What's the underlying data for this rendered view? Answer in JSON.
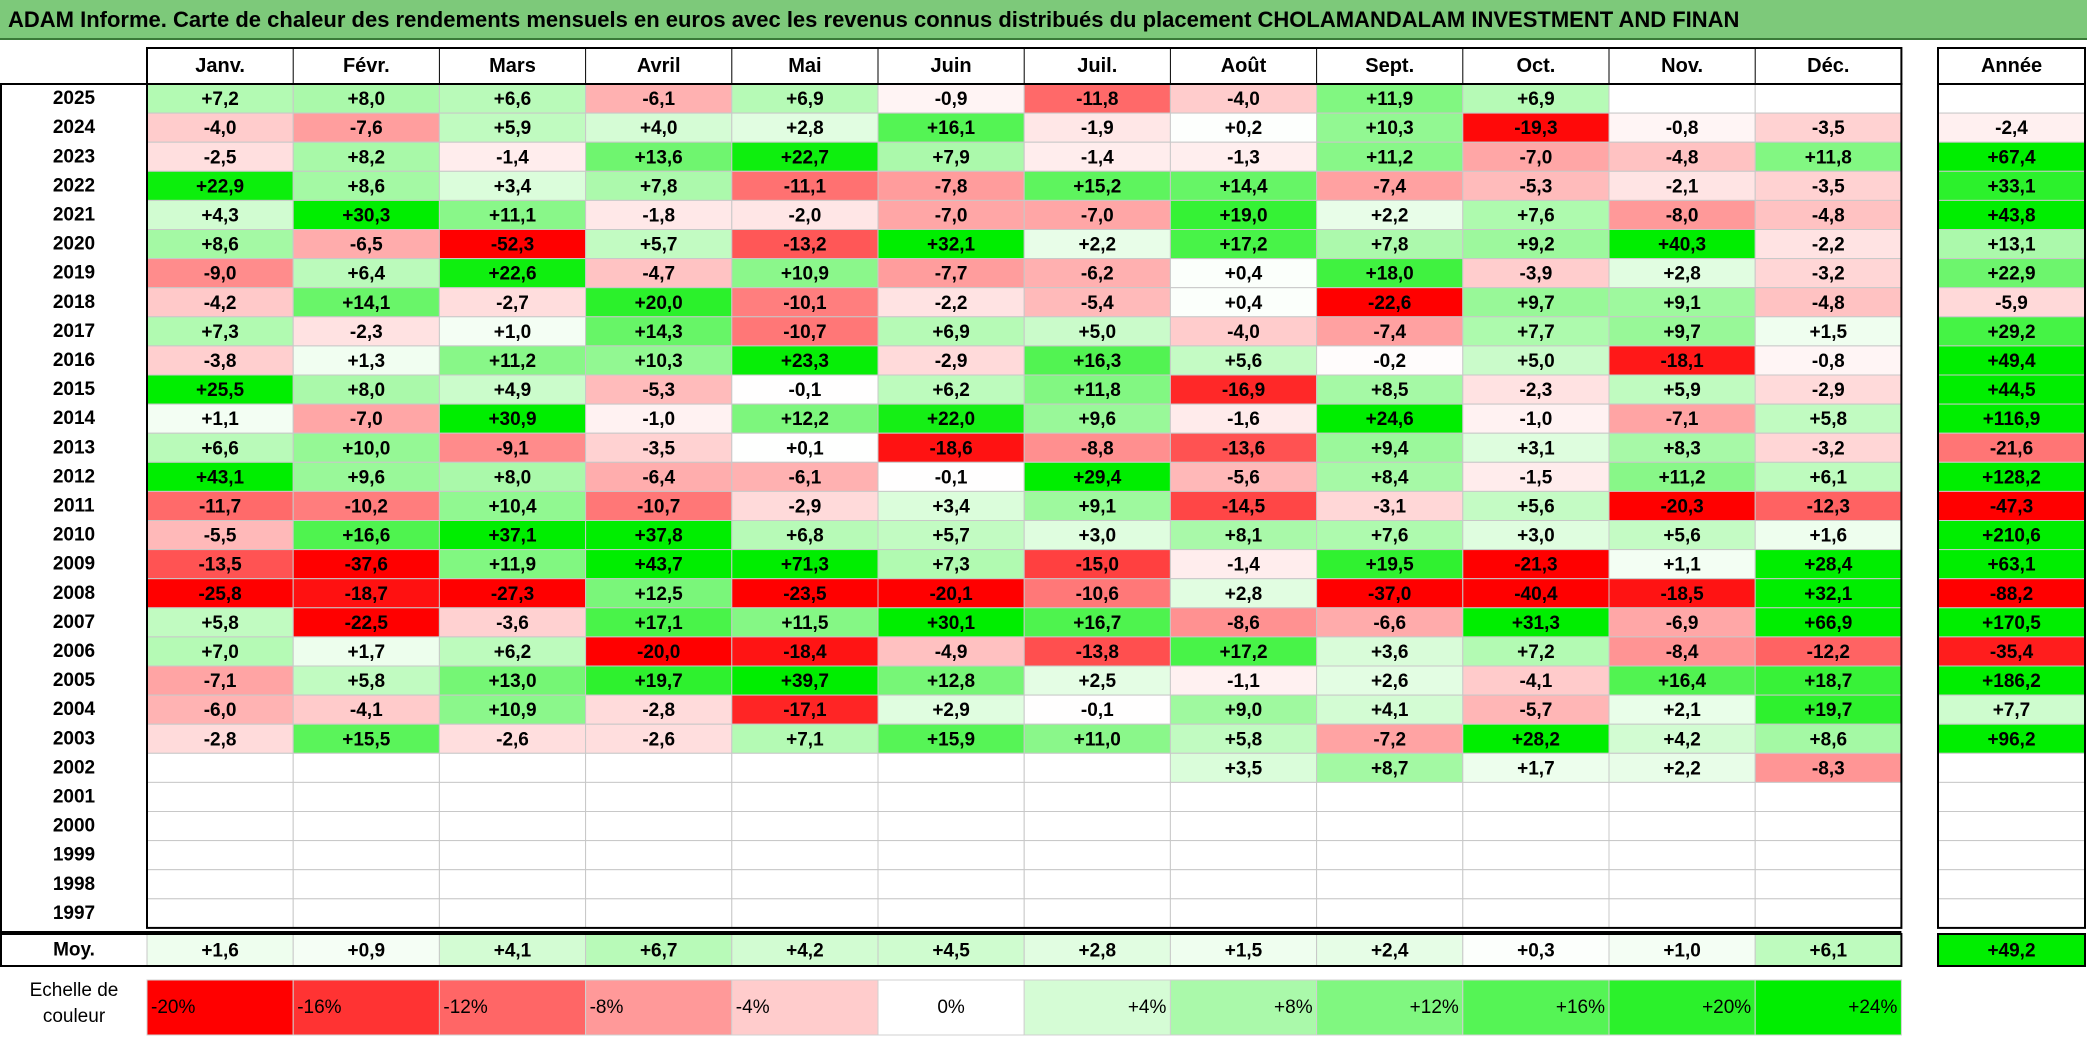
{
  "title": "ADAM Informe. Carte de chaleur des rendements mensuels en euros avec les revenus connus distribués du placement CHOLAMANDALAM INVESTMENT AND FINAN",
  "chart_data": {
    "type": "heatmap",
    "months": [
      "Janv.",
      "Févr.",
      "Mars",
      "Avril",
      "Mai",
      "Juin",
      "Juil.",
      "Août",
      "Sept.",
      "Oct.",
      "Nov.",
      "Déc."
    ],
    "annual_header": "Année",
    "years": [
      "2025",
      "2024",
      "2023",
      "2022",
      "2021",
      "2020",
      "2019",
      "2018",
      "2017",
      "2016",
      "2015",
      "2014",
      "2013",
      "2012",
      "2011",
      "2010",
      "2009",
      "2008",
      "2007",
      "2006",
      "2005",
      "2004",
      "2003",
      "2002",
      "2001",
      "2000",
      "1999",
      "1998",
      "1997"
    ],
    "values": [
      [
        "+7,2",
        "+8,0",
        "+6,6",
        "-6,1",
        "+6,9",
        "-0,9",
        "-11,8",
        "-4,0",
        "+11,9",
        "+6,9",
        "",
        ""
      ],
      [
        "-4,0",
        "-7,6",
        "+5,9",
        "+4,0",
        "+2,8",
        "+16,1",
        "-1,9",
        "+0,2",
        "+10,3",
        "-19,3",
        "-0,8",
        "-3,5"
      ],
      [
        "-2,5",
        "+8,2",
        "-1,4",
        "+13,6",
        "+22,7",
        "+7,9",
        "-1,4",
        "-1,3",
        "+11,2",
        "-7,0",
        "-4,8",
        "+11,8"
      ],
      [
        "+22,9",
        "+8,6",
        "+3,4",
        "+7,8",
        "-11,1",
        "-7,8",
        "+15,2",
        "+14,4",
        "-7,4",
        "-5,3",
        "-2,1",
        "-3,5"
      ],
      [
        "+4,3",
        "+30,3",
        "+11,1",
        "-1,8",
        "-2,0",
        "-7,0",
        "-7,0",
        "+19,0",
        "+2,2",
        "+7,6",
        "-8,0",
        "-4,8"
      ],
      [
        "+8,6",
        "-6,5",
        "-52,3",
        "+5,7",
        "-13,2",
        "+32,1",
        "+2,2",
        "+17,2",
        "+7,8",
        "+9,2",
        "+40,3",
        "-2,2"
      ],
      [
        "-9,0",
        "+6,4",
        "+22,6",
        "-4,7",
        "+10,9",
        "-7,7",
        "-6,2",
        "+0,4",
        "+18,0",
        "-3,9",
        "+2,8",
        "-3,2"
      ],
      [
        "-4,2",
        "+14,1",
        "-2,7",
        "+20,0",
        "-10,1",
        "-2,2",
        "-5,4",
        "+0,4",
        "-22,6",
        "+9,7",
        "+9,1",
        "-4,8"
      ],
      [
        "+7,3",
        "-2,3",
        "+1,0",
        "+14,3",
        "-10,7",
        "+6,9",
        "+5,0",
        "-4,0",
        "-7,4",
        "+7,7",
        "+9,7",
        "+1,5"
      ],
      [
        "-3,8",
        "+1,3",
        "+11,2",
        "+10,3",
        "+23,3",
        "-2,9",
        "+16,3",
        "+5,6",
        "-0,2",
        "+5,0",
        "-18,1",
        "-0,8"
      ],
      [
        "+25,5",
        "+8,0",
        "+4,9",
        "-5,3",
        "-0,1",
        "+6,2",
        "+11,8",
        "-16,9",
        "+8,5",
        "-2,3",
        "+5,9",
        "-2,9"
      ],
      [
        "+1,1",
        "-7,0",
        "+30,9",
        "-1,0",
        "+12,2",
        "+22,0",
        "+9,6",
        "-1,6",
        "+24,6",
        "-1,0",
        "-7,1",
        "+5,8"
      ],
      [
        "+6,6",
        "+10,0",
        "-9,1",
        "-3,5",
        "+0,1",
        "-18,6",
        "-8,8",
        "-13,6",
        "+9,4",
        "+3,1",
        "+8,3",
        "-3,2"
      ],
      [
        "+43,1",
        "+9,6",
        "+8,0",
        "-6,4",
        "-6,1",
        "-0,1",
        "+29,4",
        "-5,6",
        "+8,4",
        "-1,5",
        "+11,2",
        "+6,1"
      ],
      [
        "-11,7",
        "-10,2",
        "+10,4",
        "-10,7",
        "-2,9",
        "+3,4",
        "+9,1",
        "-14,5",
        "-3,1",
        "+5,6",
        "-20,3",
        "-12,3"
      ],
      [
        "-5,5",
        "+16,6",
        "+37,1",
        "+37,8",
        "+6,8",
        "+5,7",
        "+3,0",
        "+8,1",
        "+7,6",
        "+3,0",
        "+5,6",
        "+1,6"
      ],
      [
        "-13,5",
        "-37,6",
        "+11,9",
        "+43,7",
        "+71,3",
        "+7,3",
        "-15,0",
        "-1,4",
        "+19,5",
        "-21,3",
        "+1,1",
        "+28,4"
      ],
      [
        "-25,8",
        "-18,7",
        "-27,3",
        "+12,5",
        "-23,5",
        "-20,1",
        "-10,6",
        "+2,8",
        "-37,0",
        "-40,4",
        "-18,5",
        "+32,1"
      ],
      [
        "+5,8",
        "-22,5",
        "-3,6",
        "+17,1",
        "+11,5",
        "+30,1",
        "+16,7",
        "-8,6",
        "-6,6",
        "+31,3",
        "-6,9",
        "+66,9"
      ],
      [
        "+7,0",
        "+1,7",
        "+6,2",
        "-20,0",
        "-18,4",
        "-4,9",
        "-13,8",
        "+17,2",
        "+3,6",
        "+7,2",
        "-8,4",
        "-12,2"
      ],
      [
        "-7,1",
        "+5,8",
        "+13,0",
        "+19,7",
        "+39,7",
        "+12,8",
        "+2,5",
        "-1,1",
        "+2,6",
        "-4,1",
        "+16,4",
        "+18,7"
      ],
      [
        "-6,0",
        "-4,1",
        "+10,9",
        "-2,8",
        "-17,1",
        "+2,9",
        "-0,1",
        "+9,0",
        "+4,1",
        "-5,7",
        "+2,1",
        "+19,7"
      ],
      [
        "-2,8",
        "+15,5",
        "-2,6",
        "-2,6",
        "+7,1",
        "+15,9",
        "+11,0",
        "+5,8",
        "-7,2",
        "+28,2",
        "+4,2",
        "+8,6"
      ],
      [
        "",
        "",
        "",
        "",
        "",
        "",
        "",
        "+3,5",
        "+8,7",
        "+1,7",
        "+2,2",
        "-8,3"
      ],
      [
        "",
        "",
        "",
        "",
        "",
        "",
        "",
        "",
        "",
        "",
        "",
        ""
      ],
      [
        "",
        "",
        "",
        "",
        "",
        "",
        "",
        "",
        "",
        "",
        "",
        ""
      ],
      [
        "",
        "",
        "",
        "",
        "",
        "",
        "",
        "",
        "",
        "",
        "",
        ""
      ],
      [
        "",
        "",
        "",
        "",
        "",
        "",
        "",
        "",
        "",
        "",
        "",
        ""
      ],
      [
        "",
        "",
        "",
        "",
        "",
        "",
        "",
        "",
        "",
        "",
        "",
        ""
      ]
    ],
    "annual": [
      "",
      "-2,4",
      "+67,4",
      "+33,1",
      "+43,8",
      "+13,1",
      "+22,9",
      "-5,9",
      "+29,2",
      "+49,4",
      "+44,5",
      "+116,9",
      "-21,6",
      "+128,2",
      "-47,3",
      "+210,6",
      "+63,1",
      "-88,2",
      "+170,5",
      "-35,4",
      "+186,2",
      "+7,7",
      "+96,2",
      "",
      "",
      "",
      "",
      "",
      ""
    ],
    "average_label": "Moy.",
    "average": [
      "+1,6",
      "+0,9",
      "+4,1",
      "+6,7",
      "+4,2",
      "+4,5",
      "+2,8",
      "+1,5",
      "+2,4",
      "+0,3",
      "+1,0",
      "+6,1"
    ],
    "average_annual": "+49,2",
    "legend_title": "Echelle de couleur",
    "legend_labels": [
      "-20%",
      "-16%",
      "-12%",
      "-8%",
      "-4%",
      "0%",
      "+4%",
      "+8%",
      "+12%",
      "+16%",
      "+20%",
      "+24%"
    ],
    "legend_values": [
      -20,
      -16,
      -12,
      -8,
      -4,
      0,
      4,
      8,
      12,
      16,
      20,
      24
    ],
    "colors": {
      "negative": "#ff0000",
      "positive": "#00ee00",
      "neutral": "#ffffff"
    }
  }
}
